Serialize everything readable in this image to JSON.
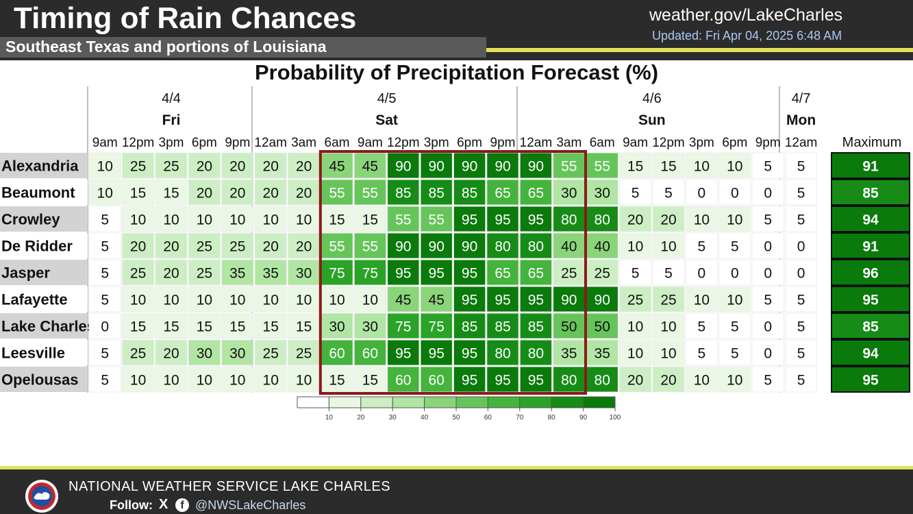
{
  "header": {
    "title": "Timing of Rain Chances",
    "subtitle": "Southeast Texas and portions of Louisiana",
    "website": "weather.gov/LakeCharles",
    "updated": "Updated: Fri Apr 04, 2025 6:48 AM"
  },
  "footer": {
    "org": "NATIONAL WEATHER SERVICE LAKE CHARLES",
    "follow_label": "Follow:",
    "x_icon": "X",
    "fb_icon": "f",
    "handle": "@NWSLakeCharles"
  },
  "colors": {
    "header_bg": "#2b2b2b",
    "accent_yellow": "#e3e05b",
    "highlight_box": "#8b1a1a",
    "site_bg": "#d3d3d3"
  },
  "chart_data": {
    "type": "heatmap",
    "title": "Probability of Precipitation Forecast (%)",
    "days": [
      {
        "date": "4/4",
        "dow": "Fri",
        "times": [
          "9am",
          "12pm",
          "3pm",
          "6pm",
          "9pm"
        ]
      },
      {
        "date": "4/5",
        "dow": "Sat",
        "times": [
          "12am",
          "3am",
          "6am",
          "9am",
          "12pm",
          "3pm",
          "6pm",
          "9pm"
        ]
      },
      {
        "date": "4/6",
        "dow": "Sun",
        "times": [
          "12am",
          "3am",
          "6am",
          "9am",
          "12pm",
          "3pm",
          "6pm",
          "9pm"
        ]
      },
      {
        "date": "4/7",
        "dow": "Mon",
        "times": [
          "12am"
        ]
      }
    ],
    "max_header": "Maximum",
    "rows": [
      {
        "site": "Alexandria",
        "values": [
          10,
          25,
          25,
          20,
          20,
          20,
          20,
          45,
          45,
          90,
          90,
          90,
          90,
          90,
          55,
          55,
          15,
          15,
          10,
          10,
          5,
          5
        ],
        "max": 91
      },
      {
        "site": "Beaumont",
        "values": [
          10,
          15,
          15,
          20,
          20,
          20,
          20,
          55,
          55,
          85,
          85,
          85,
          65,
          65,
          30,
          30,
          5,
          5,
          0,
          0,
          0,
          5
        ],
        "max": 85
      },
      {
        "site": "Crowley",
        "values": [
          5,
          10,
          10,
          10,
          10,
          10,
          10,
          15,
          15,
          55,
          55,
          95,
          95,
          95,
          80,
          80,
          20,
          20,
          10,
          10,
          5,
          5
        ],
        "max": 94
      },
      {
        "site": "De Ridder",
        "values": [
          5,
          20,
          20,
          25,
          25,
          20,
          20,
          55,
          55,
          90,
          90,
          90,
          80,
          80,
          40,
          40,
          10,
          10,
          5,
          5,
          0,
          0
        ],
        "max": 91
      },
      {
        "site": "Jasper",
        "values": [
          5,
          25,
          20,
          25,
          35,
          35,
          30,
          75,
          75,
          95,
          95,
          95,
          65,
          65,
          25,
          25,
          5,
          5,
          0,
          0,
          0,
          0
        ],
        "max": 96
      },
      {
        "site": "Lafayette",
        "values": [
          5,
          10,
          10,
          10,
          10,
          10,
          10,
          10,
          10,
          45,
          45,
          95,
          95,
          95,
          90,
          90,
          25,
          25,
          10,
          10,
          5,
          5
        ],
        "max": 95
      },
      {
        "site": "Lake Charles",
        "values": [
          0,
          15,
          15,
          15,
          15,
          15,
          15,
          30,
          30,
          75,
          75,
          85,
          85,
          85,
          50,
          50,
          10,
          10,
          5,
          5,
          0,
          5
        ],
        "max": 85
      },
      {
        "site": "Leesville",
        "values": [
          5,
          25,
          20,
          30,
          30,
          25,
          25,
          60,
          60,
          95,
          95,
          95,
          80,
          80,
          35,
          35,
          10,
          10,
          5,
          5,
          0,
          5
        ],
        "max": 94
      },
      {
        "site": "Opelousas",
        "values": [
          5,
          10,
          10,
          10,
          10,
          10,
          10,
          15,
          15,
          60,
          60,
          95,
          95,
          95,
          80,
          80,
          20,
          20,
          10,
          10,
          5,
          5
        ],
        "max": 95
      }
    ],
    "highlight": {
      "first_col": 7,
      "last_col": 14
    },
    "colorbar": {
      "ticks": [
        "10",
        "20",
        "30",
        "40",
        "50",
        "60",
        "70",
        "80",
        "90",
        "100"
      ],
      "colors": [
        "#ffffff",
        "#e9f7e4",
        "#cdeec4",
        "#b0e5a3",
        "#8ad57a",
        "#66c55a",
        "#44b43c",
        "#2aa327",
        "#168c16",
        "#0a7a0a"
      ]
    },
    "scale": [
      "#ffffff",
      "#e9f7e4",
      "#cdeec4",
      "#b0e5a3",
      "#8ad57a",
      "#66c55a",
      "#44b43c",
      "#2aa327",
      "#168c16",
      "#0a7a0a"
    ]
  }
}
